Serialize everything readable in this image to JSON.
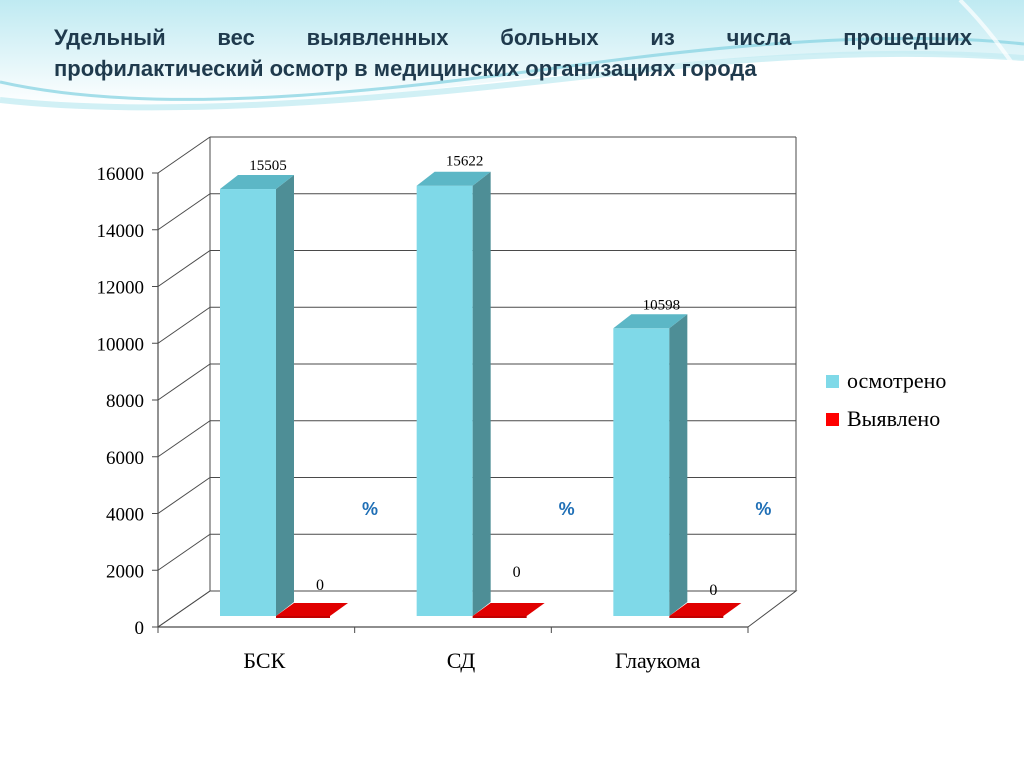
{
  "title_line1": "Удельный вес выявленных больных из числа прошедших",
  "title_line2": "профилактический осмотр в медицинских организациях города",
  "colors": {
    "examined": "#7fd9e8",
    "examined_side": "#4e8e96",
    "examined_top": "#5cb7c6",
    "detected": "#c00000",
    "detected_front": "#e00000",
    "percent_text": "#1f6fb6",
    "grid": "#4a4a4a"
  },
  "chart_data": {
    "type": "bar",
    "categories": [
      "БСК",
      "СД",
      "Глаукома"
    ],
    "series": [
      {
        "name": "осмотрено",
        "values": [
          15505,
          15622,
          10598
        ]
      },
      {
        "name": "Выявлено",
        "values": [
          0,
          0,
          0
        ]
      }
    ],
    "data_labels": {
      "examined": [
        "15505",
        "15622",
        "10598"
      ],
      "detected": [
        "0",
        "0",
        "0"
      ]
    },
    "percent_labels": [
      "%",
      "%",
      "%"
    ],
    "yticks": [
      "0",
      "2000",
      "4000",
      "6000",
      "8000",
      "10000",
      "12000",
      "14000",
      "16000"
    ],
    "ylim": [
      0,
      16000
    ],
    "grid": true,
    "legend": "right"
  }
}
